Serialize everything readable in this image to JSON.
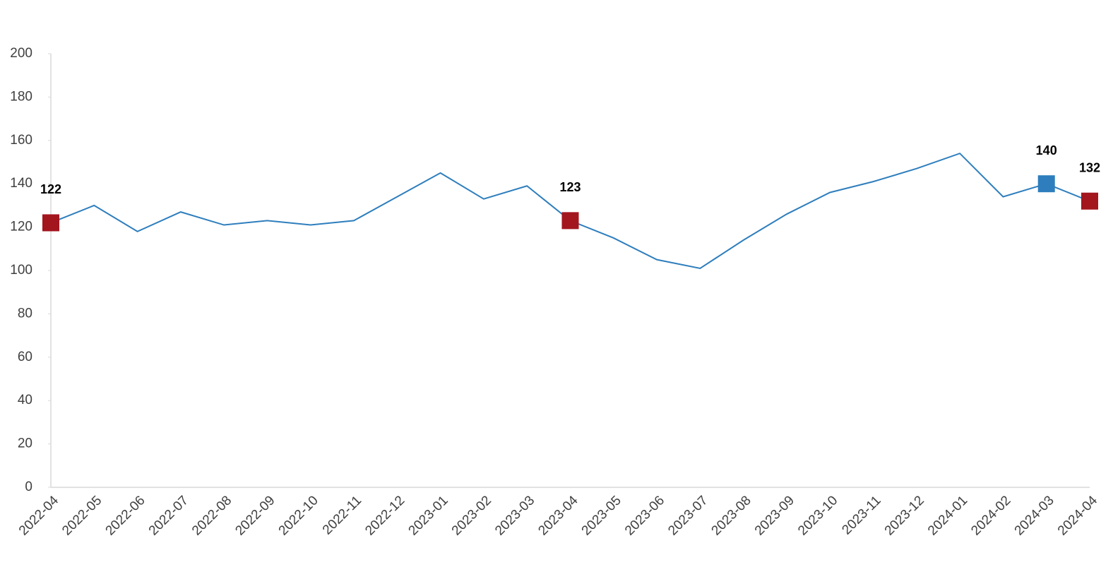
{
  "chart_data": {
    "type": "line",
    "categories": [
      "2022-04",
      "2022-05",
      "2022-06",
      "2022-07",
      "2022-08",
      "2022-09",
      "2022-10",
      "2022-11",
      "2022-12",
      "2023-01",
      "2023-02",
      "2023-03",
      "2023-04",
      "2023-05",
      "2023-06",
      "2023-07",
      "2023-08",
      "2023-09",
      "2023-10",
      "2023-11",
      "2023-12",
      "2024-01",
      "2024-02",
      "2024-03",
      "2024-04"
    ],
    "series": [
      {
        "color": "#2e7ebd",
        "values": [
          122,
          130,
          118,
          127,
          121,
          123,
          121,
          123,
          134,
          145,
          133,
          139,
          123,
          115,
          105,
          101,
          114,
          126,
          136,
          141,
          147,
          154,
          134,
          140,
          132
        ]
      }
    ],
    "highlights": [
      {
        "index": 0,
        "color": "#a3161e"
      },
      {
        "index": 12,
        "color": "#a3161e"
      },
      {
        "index": 23,
        "color": "#2e7ebd"
      },
      {
        "index": 24,
        "color": "#a3161e"
      }
    ],
    "ylim": [
      0,
      200
    ],
    "yticks": [
      0,
      20,
      40,
      60,
      80,
      100,
      120,
      140,
      160,
      180,
      200
    ],
    "grid": false
  }
}
